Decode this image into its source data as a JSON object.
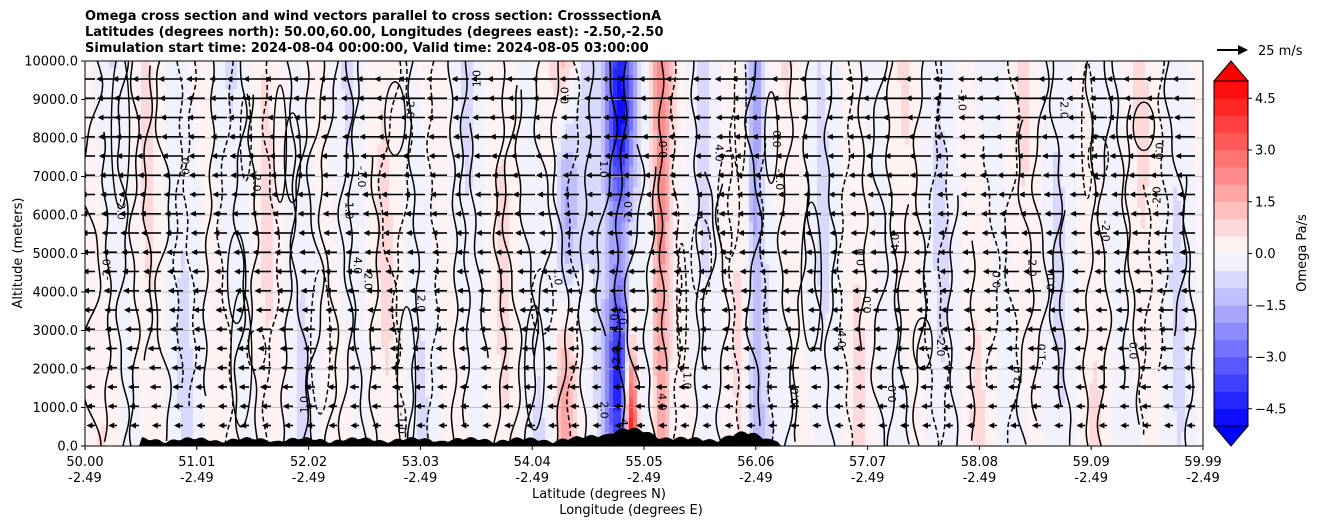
{
  "chart_data": {
    "type": "contour",
    "title_lines": [
      "Omega cross section and wind vectors parallel to cross section: CrosssectionA",
      "Latitudes (degrees north): 50.00,60.00, Longitudes (degrees east): -2.50,-2.50",
      "Simulation start time: 2024-08-04 00:00:00, Valid time: 2024-08-05 03:00:00"
    ],
    "ylabel": "Altitude (meters)",
    "xlabel_line1": "Latitude (degrees N)",
    "xlabel_line2": "Longitude (degrees E)",
    "ylim": [
      0,
      10000
    ],
    "yticks": [
      "0.0",
      "1000.0",
      "2000.0",
      "3000.0",
      "4000.0",
      "5000.0",
      "6000.0",
      "7000.0",
      "8000.0",
      "9000.0",
      "10000.0"
    ],
    "xticks_lat": [
      "50.00",
      "51.01",
      "52.02",
      "53.03",
      "54.04",
      "55.05",
      "56.06",
      "57.07",
      "58.08",
      "59.09",
      "59.99"
    ],
    "xticks_lon": [
      "-2.49",
      "-2.49",
      "-2.49",
      "-2.49",
      "-2.49",
      "-2.49",
      "-2.49",
      "-2.49",
      "-2.49",
      "-2.49",
      "-2.49"
    ],
    "grid": "horizontal",
    "colorbar": {
      "label": "Omega Pa/s",
      "range": [
        -5,
        5
      ],
      "ticks": [
        "4.5",
        "3.0",
        "1.5",
        "0.0",
        "−1.5",
        "−3.0",
        "−4.5"
      ],
      "tick_values": [
        4.5,
        3.0,
        1.5,
        0.0,
        -1.5,
        -3.0,
        -4.5
      ],
      "cmap": "bwr",
      "extend": "both"
    },
    "quiver_key": {
      "label": "25 m/s"
    },
    "contour_labels": [
      "0.0",
      "1.0",
      "-1.0",
      "2.0",
      "-2.0",
      "4.0"
    ],
    "wind_direction": "left"
  }
}
